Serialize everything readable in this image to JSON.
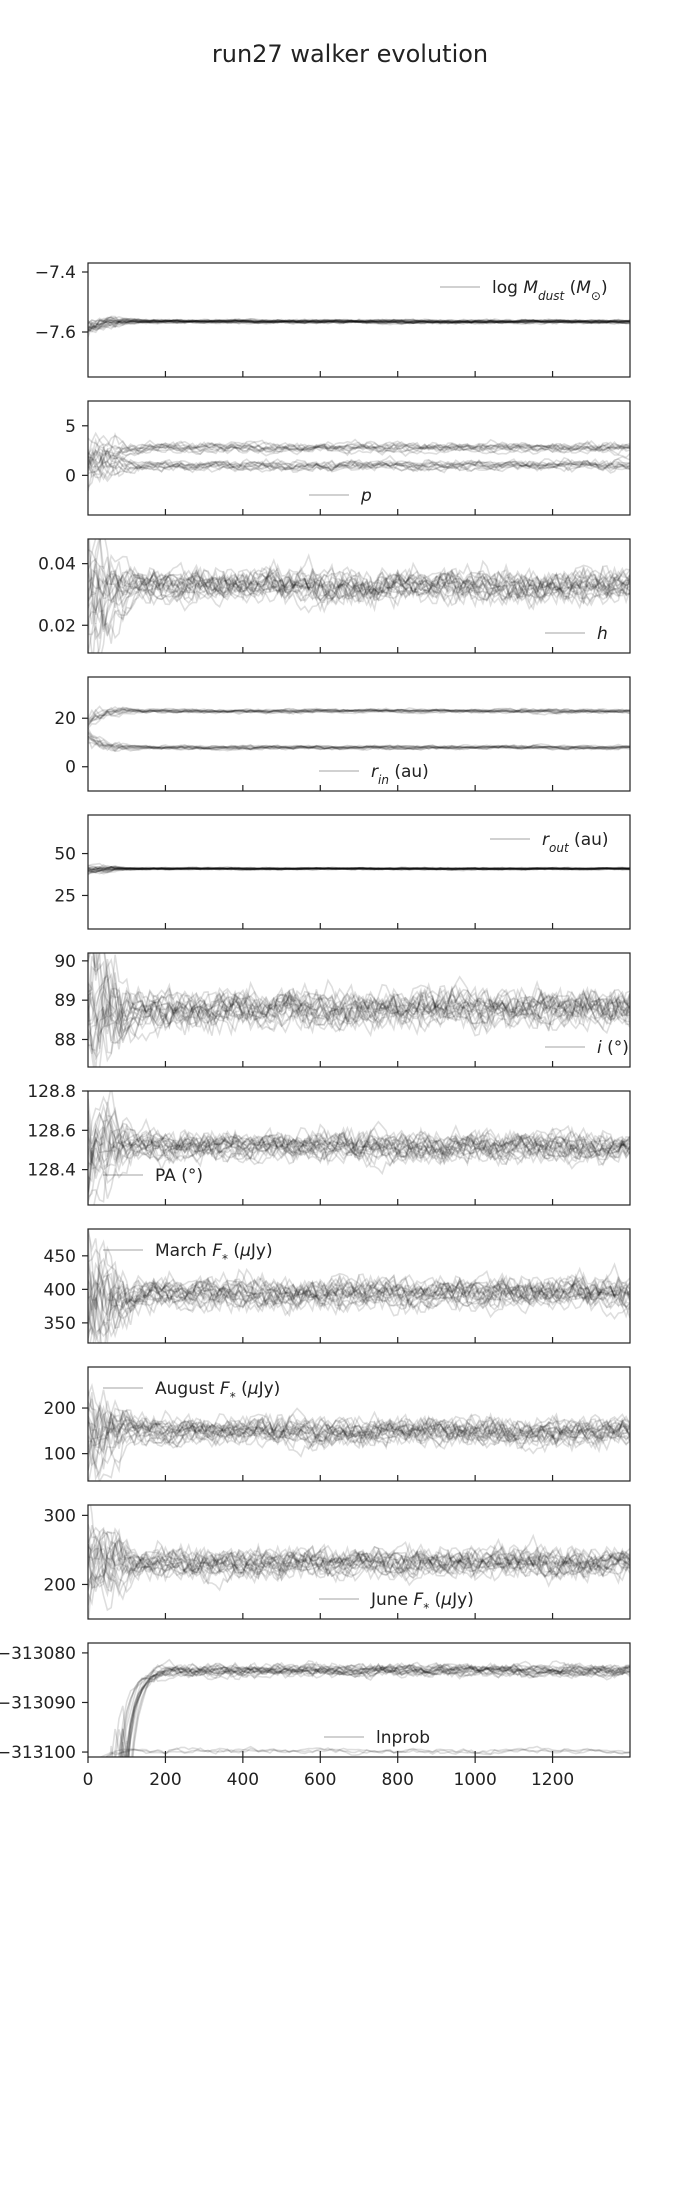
{
  "title": "run27 walker evolution",
  "chart_data": {
    "type": "line",
    "title": "run27 walker evolution",
    "xlabel": "",
    "xlim": [
      0,
      1400
    ],
    "x_ticks": [
      0,
      200,
      400,
      600,
      800,
      1000,
      1200
    ],
    "x_tick_labels": [
      "0",
      "200",
      "400",
      "600",
      "800",
      "1000",
      "1200"
    ],
    "grid": false,
    "panels": [
      {
        "legend": "log M_dust (M_sun)",
        "legend_position": "top-right",
        "ylim": [
          -7.75,
          -7.37
        ],
        "yticks": [
          -7.4,
          -7.6
        ],
        "ytick_labels": [
          "−7.4",
          "−7.6"
        ],
        "levels": [
          -7.565
        ],
        "spread": 0.006,
        "initial": -7.6
      },
      {
        "legend": "p",
        "legend_position": "bottom-center",
        "ylim": [
          -4,
          7.5
        ],
        "yticks": [
          5,
          0
        ],
        "ytick_labels": [
          "5",
          "0"
        ],
        "levels": [
          1.0,
          2.8
        ],
        "spread": 0.5,
        "initial": 1.5
      },
      {
        "legend": "h",
        "legend_position": "bottom-right",
        "ylim": [
          0.011,
          0.048
        ],
        "yticks": [
          0.04,
          0.02
        ],
        "ytick_labels": [
          "0.04",
          "0.02"
        ],
        "levels": [
          0.033
        ],
        "spread": 0.005,
        "initial": 0.03
      },
      {
        "legend": "r_in (au)",
        "legend_position": "bottom-center",
        "ylim": [
          -10,
          37
        ],
        "yticks": [
          20,
          0
        ],
        "ytick_labels": [
          "20",
          "0"
        ],
        "levels": [
          23,
          8
        ],
        "spread": 0.8,
        "initial": 15
      },
      {
        "legend": "r_out (au)",
        "legend_position": "top-right",
        "ylim": [
          5,
          73
        ],
        "yticks": [
          50,
          25
        ],
        "ytick_labels": [
          "50",
          "25"
        ],
        "levels": [
          41
        ],
        "spread": 0.6,
        "initial": 40
      },
      {
        "legend": "i (°)",
        "legend_position": "bottom-right",
        "ylim": [
          87.3,
          90.2
        ],
        "yticks": [
          90,
          89,
          88
        ],
        "ytick_labels": [
          "90",
          "89",
          "88"
        ],
        "levels": [
          88.8
        ],
        "spread": 0.45,
        "initial": 88.7
      },
      {
        "legend": "PA (°)",
        "legend_position": "bottom-left",
        "ylim": [
          128.22,
          128.8
        ],
        "yticks": [
          128.8,
          128.6,
          128.4
        ],
        "ytick_labels": [
          "128.8",
          "128.6",
          "128.4"
        ],
        "levels": [
          128.52
        ],
        "spread": 0.07,
        "initial": 128.5
      },
      {
        "legend": "March F* (μJy)",
        "legend_position": "top-left",
        "ylim": [
          320,
          490
        ],
        "yticks": [
          450,
          400,
          350
        ],
        "ytick_labels": [
          "450",
          "400",
          "350"
        ],
        "levels": [
          395
        ],
        "spread": 22,
        "initial": 400
      },
      {
        "legend": "August F* (μJy)",
        "legend_position": "top-left",
        "ylim": [
          40,
          290
        ],
        "yticks": [
          200,
          100
        ],
        "ytick_labels": [
          "200",
          "100"
        ],
        "levels": [
          150
        ],
        "spread": 28,
        "initial": 150
      },
      {
        "legend": "June F* (μJy)",
        "legend_position": "bottom-center",
        "ylim": [
          150,
          315
        ],
        "yticks": [
          300,
          200
        ],
        "ytick_labels": [
          "300",
          "200"
        ],
        "levels": [
          232
        ],
        "spread": 20,
        "initial": 230
      },
      {
        "legend": "lnprob",
        "legend_position": "bottom-center",
        "ylim": [
          -313101,
          -313078
        ],
        "yticks": [
          -313080,
          -313090,
          -313100
        ],
        "ytick_labels": [
          "−313080",
          "−313090",
          "−313100"
        ],
        "levels": [
          -313083.5
        ],
        "spread": 1.2,
        "initial": -313110,
        "is_lnprob": true
      }
    ]
  }
}
